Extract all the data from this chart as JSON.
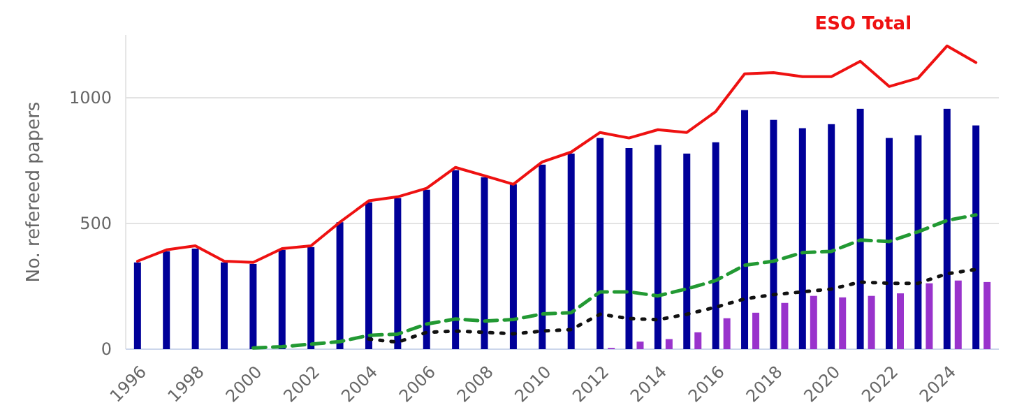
{
  "chart_data": {
    "type": "bar",
    "ylabel": "No. refereed papers",
    "categories": [
      "1996",
      null,
      "1998",
      null,
      "2000",
      null,
      "2002",
      null,
      "2004",
      null,
      "2006",
      null,
      "2008",
      null,
      "2010",
      null,
      "2012",
      null,
      "2014",
      null,
      "2016",
      null,
      "2018",
      null,
      "2020",
      null,
      "2022",
      null,
      "2024",
      null
    ],
    "series": [
      {
        "color": "#000099",
        "values": [
          345,
          389,
          400,
          345,
          339,
          395,
          406,
          505,
          584,
          601,
          634,
          712,
          684,
          656,
          734,
          778,
          840,
          800,
          812,
          778,
          823,
          951,
          912,
          879,
          895,
          956,
          840,
          851,
          956,
          890
        ]
      },
      {
        "color": "#9933cc",
        "values": [
          null,
          null,
          null,
          null,
          null,
          null,
          null,
          null,
          null,
          null,
          null,
          null,
          null,
          null,
          null,
          null,
          5,
          30,
          40,
          67,
          123,
          145,
          184,
          212,
          206,
          212,
          222,
          262,
          273,
          267
        ]
      },
      {
        "type": "line",
        "name": "ESO Total",
        "color": "#ee1111",
        "line_style": "solid",
        "values": [
          350,
          395,
          411,
          350,
          345,
          400,
          411,
          505,
          590,
          606,
          640,
          723,
          690,
          656,
          745,
          784,
          862,
          840,
          873,
          862,
          945,
          1095,
          1100,
          1084,
          1084,
          1145,
          1045,
          1078,
          1206,
          1140
        ]
      },
      {
        "type": "line",
        "color": "#229933",
        "line_style": "dashed",
        "values": [
          null,
          null,
          null,
          null,
          5,
          10,
          20,
          30,
          55,
          60,
          100,
          120,
          112,
          118,
          140,
          145,
          228,
          228,
          212,
          240,
          273,
          334,
          350,
          384,
          389,
          434,
          428,
          467,
          512,
          534
        ]
      },
      {
        "type": "line",
        "color": "#111111",
        "line_style": "dotted",
        "values": [
          null,
          null,
          null,
          null,
          null,
          null,
          null,
          null,
          40,
          28,
          67,
          72,
          67,
          61,
          72,
          78,
          139,
          122,
          117,
          139,
          167,
          200,
          217,
          228,
          239,
          267,
          262,
          262,
          300,
          317
        ]
      }
    ],
    "ylim": [
      0,
      1250
    ],
    "yticks": [
      0,
      500,
      1000
    ],
    "grid": "y",
    "legend": false
  }
}
